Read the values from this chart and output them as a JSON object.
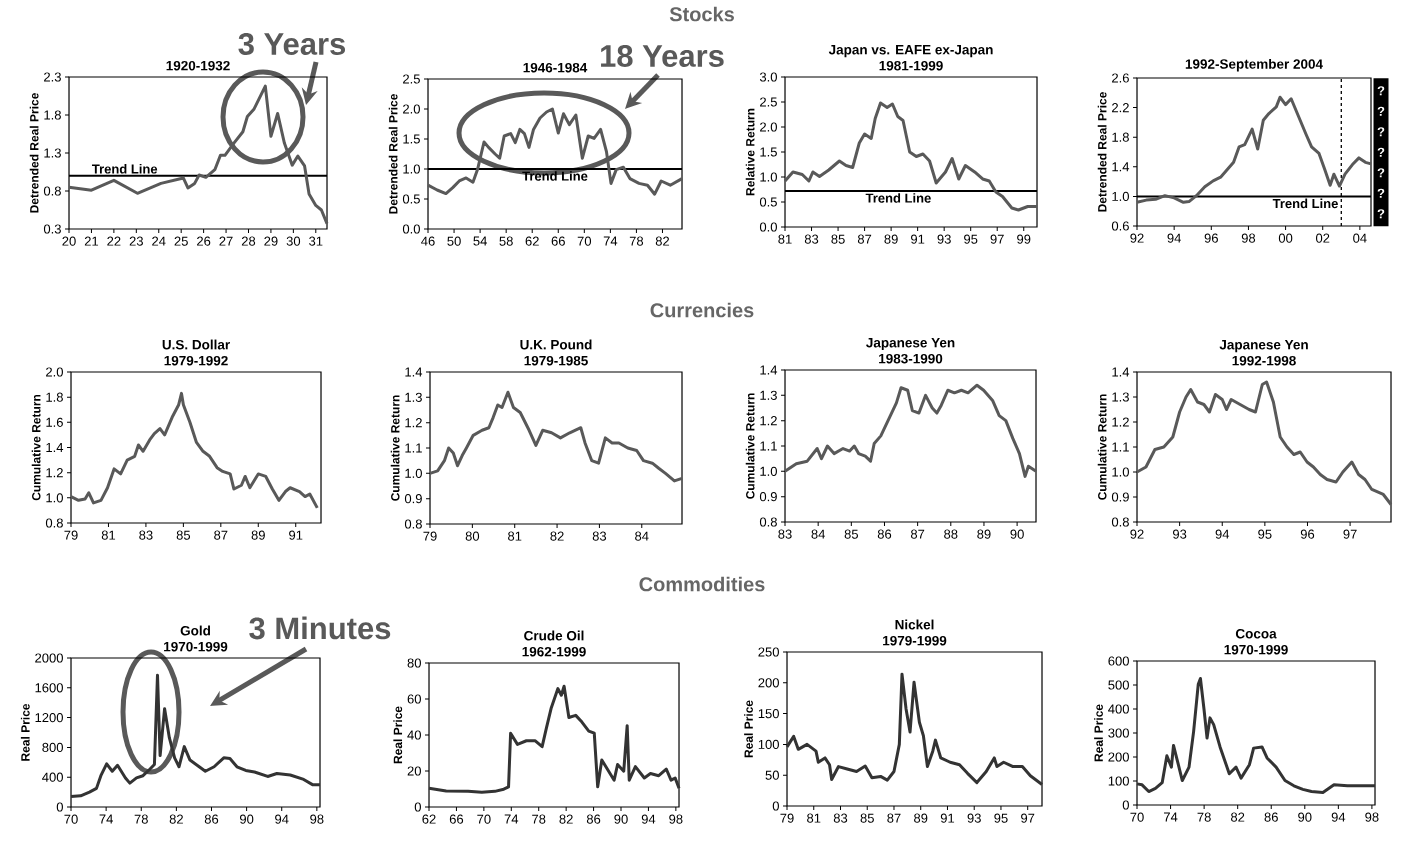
{
  "chart_data": [
    {
      "type": "line",
      "subtitle": "1920-1932",
      "ylabel": "Detrended Real Price",
      "color": "#595959",
      "x": [
        1920,
        1921,
        1922,
        1923.05,
        1924.1,
        1925.1,
        1925.3,
        1925.6,
        1925.8,
        1926.1,
        1926.5,
        1926.75,
        1926.95,
        1927.35,
        1927.75,
        1927.95,
        1928.25,
        1928.75,
        1929.0,
        1929.3,
        1929.6,
        1929.95,
        1930.2,
        1930.5,
        1930.7,
        1931.0,
        1931.25,
        1931.5
      ],
      "values": [
        0.85,
        0.81,
        0.94,
        0.77,
        0.9,
        0.97,
        0.84,
        0.9,
        1.01,
        0.98,
        1.08,
        1.27,
        1.27,
        1.43,
        1.58,
        1.78,
        1.88,
        2.18,
        1.52,
        1.82,
        1.43,
        1.14,
        1.26,
        1.13,
        0.76,
        0.61,
        0.55,
        0.37
      ],
      "xlim": [
        1920,
        1931.5
      ],
      "ylim": [
        0.3,
        2.3
      ],
      "xticks": [
        {
          "value": 1920,
          "label": "20"
        },
        {
          "value": 1921,
          "label": "21"
        },
        {
          "value": 1922,
          "label": "22"
        },
        {
          "value": 1923,
          "label": "23"
        },
        {
          "value": 1924,
          "label": "24"
        },
        {
          "value": 1925,
          "label": "25"
        },
        {
          "value": 1926,
          "label": "26"
        },
        {
          "value": 1927,
          "label": "27"
        },
        {
          "value": 1928,
          "label": "28"
        },
        {
          "value": 1929,
          "label": "29"
        },
        {
          "value": 1930,
          "label": "30"
        },
        {
          "value": 1931,
          "label": "31"
        }
      ],
      "yticks": [
        0.3,
        0.8,
        1.3,
        1.8,
        2.3
      ],
      "ref_lines": [
        {
          "axis": "y",
          "value": 1.0,
          "label": "Trend Line",
          "color": "#000000"
        }
      ],
      "annotations": [
        "Stocks",
        "3 Years"
      ]
    },
    {
      "type": "line",
      "subtitle": "1946-1984",
      "ylabel": "Detrended Real Price",
      "color": "#595959",
      "x": [
        1946,
        1947.4,
        1948.75,
        1949.8,
        1950.8,
        1951.85,
        1952.9,
        1953.6,
        1954.6,
        1955.3,
        1956.3,
        1957.0,
        1957.7,
        1958.7,
        1959.4,
        1960.1,
        1960.8,
        1961.5,
        1962.2,
        1963.2,
        1964.2,
        1965.1,
        1966.0,
        1966.8,
        1967.7,
        1968.7,
        1969.7,
        1970.6,
        1971.5,
        1972.5,
        1973.4,
        1974.1,
        1974.9,
        1976.0,
        1977.0,
        1978.4,
        1979.7,
        1980.8,
        1981.8,
        1983.2,
        1985.0
      ],
      "values": [
        0.73,
        0.65,
        0.59,
        0.69,
        0.8,
        0.85,
        0.78,
        0.99,
        1.45,
        1.36,
        1.25,
        1.18,
        1.55,
        1.59,
        1.44,
        1.66,
        1.59,
        1.36,
        1.66,
        1.85,
        1.95,
        2.0,
        1.6,
        1.92,
        1.74,
        1.9,
        1.18,
        1.55,
        1.51,
        1.66,
        1.29,
        0.76,
        0.99,
        1.03,
        0.84,
        0.76,
        0.73,
        0.58,
        0.8,
        0.73,
        0.84
      ],
      "xlim": [
        1946,
        1985
      ],
      "ylim": [
        0,
        2.5
      ],
      "xticks": [
        {
          "value": 1946,
          "label": "46"
        },
        {
          "value": 1950,
          "label": "50"
        },
        {
          "value": 1954,
          "label": "54"
        },
        {
          "value": 1958,
          "label": "58"
        },
        {
          "value": 1962,
          "label": "62"
        },
        {
          "value": 1966,
          "label": "66"
        },
        {
          "value": 1970,
          "label": "70"
        },
        {
          "value": 1974,
          "label": "74"
        },
        {
          "value": 1978,
          "label": "78"
        },
        {
          "value": 1982,
          "label": "82"
        }
      ],
      "yticks": [
        {
          "value": 0,
          "label": "0.0"
        },
        0.5,
        {
          "value": 1,
          "label": "1.0"
        },
        1.5,
        {
          "value": 2,
          "label": "2.0"
        },
        2.5
      ],
      "ref_lines": [
        {
          "axis": "y",
          "value": 1.0,
          "label": "Trend Line",
          "color": "#000000"
        }
      ],
      "annotations": [
        "18 Years"
      ]
    },
    {
      "type": "line",
      "title": "Japan vs. EAFE ex-Japan",
      "subtitle": "1981-1999",
      "ylabel": "Relative Return",
      "color": "#595959",
      "x": [
        1981,
        1981.6,
        1982.3,
        1982.8,
        1983.1,
        1983.6,
        1984.3,
        1985.1,
        1985.6,
        1986.1,
        1986.6,
        1987.0,
        1987.5,
        1987.8,
        1988.2,
        1988.7,
        1989.1,
        1989.5,
        1989.9,
        1990.4,
        1990.9,
        1991.4,
        1991.9,
        1992.4,
        1993.1,
        1993.6,
        1994.1,
        1994.6,
        1995.3,
        1995.9,
        1996.4,
        1996.9,
        1997.4,
        1998.1,
        1998.6,
        1999.3,
        2000
      ],
      "values": [
        0.92,
        1.1,
        1.05,
        0.92,
        1.1,
        1.01,
        1.14,
        1.32,
        1.23,
        1.19,
        1.68,
        1.86,
        1.77,
        2.17,
        2.48,
        2.39,
        2.46,
        2.21,
        2.13,
        1.5,
        1.41,
        1.46,
        1.32,
        0.88,
        1.1,
        1.37,
        0.96,
        1.23,
        1.1,
        0.96,
        0.92,
        0.7,
        0.61,
        0.38,
        0.34,
        0.41,
        0.41
      ],
      "xlim": [
        1981,
        2000
      ],
      "ylim": [
        0,
        3
      ],
      "xticks": [
        {
          "value": 1981,
          "label": "81"
        },
        {
          "value": 1983,
          "label": "83"
        },
        {
          "value": 1985,
          "label": "85"
        },
        {
          "value": 1987,
          "label": "87"
        },
        {
          "value": 1989,
          "label": "89"
        },
        {
          "value": 1991,
          "label": "91"
        },
        {
          "value": 1993,
          "label": "93"
        },
        {
          "value": 1995,
          "label": "95"
        },
        {
          "value": 1997,
          "label": "97"
        },
        {
          "value": 1999,
          "label": "99"
        }
      ],
      "yticks": [
        {
          "value": 0,
          "label": "0.0"
        },
        0.5,
        {
          "value": 1,
          "label": "1.0"
        },
        1.5,
        {
          "value": 2,
          "label": "2.0"
        },
        2.5,
        {
          "value": 3,
          "label": "3.0"
        }
      ],
      "ref_lines": [
        {
          "axis": "y",
          "value": 0.72,
          "label": "Trend Line",
          "color": "#000000"
        }
      ]
    },
    {
      "type": "line",
      "subtitle": "1992-September 2004",
      "ylabel": "Detrended Real Price",
      "color": "#595959",
      "x": [
        1992,
        1992.5,
        1993,
        1993.5,
        1994,
        1994.5,
        1994.8,
        1995.2,
        1995.65,
        1996.1,
        1996.5,
        1996.85,
        1997.2,
        1997.5,
        1997.8,
        1998.2,
        1998.5,
        1998.8,
        1999.1,
        1999.5,
        1999.7,
        2000,
        2000.3,
        2000.7,
        2001.1,
        2001.4,
        2001.8,
        2002.1,
        2002.4,
        2002.6,
        2002.9,
        2003.2,
        2003.6,
        2003.95,
        2004.3,
        2004.6
      ],
      "values": [
        0.92,
        0.95,
        0.96,
        1.01,
        0.98,
        0.92,
        0.93,
        1.01,
        1.13,
        1.21,
        1.26,
        1.36,
        1.46,
        1.67,
        1.7,
        1.91,
        1.64,
        2.03,
        2.12,
        2.21,
        2.34,
        2.24,
        2.32,
        2.08,
        1.84,
        1.67,
        1.58,
        1.37,
        1.15,
        1.3,
        1.14,
        1.3,
        1.43,
        1.52,
        1.46,
        1.44
      ],
      "xlim": [
        1992,
        2004.6
      ],
      "ylim": [
        0.6,
        2.6
      ],
      "xticks": [
        {
          "value": 1992,
          "label": "92"
        },
        {
          "value": 1994,
          "label": "94"
        },
        {
          "value": 1996,
          "label": "96"
        },
        {
          "value": 1998,
          "label": "98"
        },
        {
          "value": 2000,
          "label": "00"
        },
        {
          "value": 2002,
          "label": "02"
        },
        {
          "value": 2004,
          "label": "04"
        }
      ],
      "yticks": [
        0.6,
        {
          "value": 1,
          "label": "1.0"
        },
        1.4,
        1.8,
        2.2,
        2.6
      ],
      "ref_lines": [
        {
          "axis": "y",
          "value": 1.0,
          "label": "Trend Line",
          "color": "#000000"
        },
        {
          "axis": "x",
          "value": 2003,
          "color": "#000000",
          "line_style": "dashed"
        }
      ],
      "annotations": [
        "? ? ? ? ? ? ?"
      ]
    },
    {
      "type": "line",
      "title": "U.S. Dollar",
      "subtitle": "1979-1992",
      "ylabel": "Cumulative Return",
      "color": "#595959",
      "x": [
        1979,
        1979.4,
        1979.75,
        1979.95,
        1980.2,
        1980.6,
        1980.95,
        1981.3,
        1981.65,
        1982.0,
        1982.4,
        1982.6,
        1982.85,
        1983.2,
        1983.45,
        1983.75,
        1984.0,
        1984.4,
        1984.75,
        1984.9,
        1985.0,
        1985.35,
        1985.7,
        1986.05,
        1986.4,
        1986.8,
        1987.1,
        1987.5,
        1987.7,
        1988.1,
        1988.3,
        1988.55,
        1989.0,
        1989.4,
        1989.75,
        1990.1,
        1990.45,
        1990.7,
        1991.2,
        1991.5,
        1991.75,
        1992.15
      ],
      "values": [
        1.01,
        0.98,
        0.99,
        1.04,
        0.96,
        0.98,
        1.08,
        1.23,
        1.19,
        1.3,
        1.33,
        1.42,
        1.37,
        1.46,
        1.51,
        1.55,
        1.5,
        1.64,
        1.74,
        1.83,
        1.74,
        1.6,
        1.44,
        1.37,
        1.33,
        1.24,
        1.21,
        1.19,
        1.07,
        1.1,
        1.17,
        1.08,
        1.19,
        1.17,
        1.07,
        0.98,
        1.05,
        1.08,
        1.05,
        1.01,
        1.03,
        0.92
      ],
      "xlim": [
        1979,
        1992.35
      ],
      "ylim": [
        0.8,
        2.0
      ],
      "xticks": [
        {
          "value": 1979,
          "label": "79"
        },
        {
          "value": 1981,
          "label": "81"
        },
        {
          "value": 1983,
          "label": "83"
        },
        {
          "value": 1985,
          "label": "85"
        },
        {
          "value": 1987,
          "label": "87"
        },
        {
          "value": 1989,
          "label": "89"
        },
        {
          "value": 1991,
          "label": "91"
        }
      ],
      "yticks": [
        0.8,
        {
          "value": 1,
          "label": "1.0"
        },
        1.2,
        1.4,
        1.6,
        1.8,
        {
          "value": 2,
          "label": "2.0"
        }
      ],
      "annotations": [
        "Currencies"
      ]
    },
    {
      "type": "line",
      "title": "U.K. Pound",
      "subtitle": "1979-1985",
      "ylabel": "Cumulative Return",
      "color": "#595959",
      "x": [
        1979,
        1979.18,
        1979.34,
        1979.44,
        1979.55,
        1979.65,
        1979.76,
        1979.86,
        1980.02,
        1980.23,
        1980.39,
        1980.49,
        1980.6,
        1980.7,
        1980.84,
        1980.97,
        1981.13,
        1981.34,
        1981.5,
        1981.66,
        1981.87,
        1982.08,
        1982.3,
        1982.56,
        1982.66,
        1982.82,
        1982.98,
        1983.14,
        1983.3,
        1983.46,
        1983.67,
        1983.88,
        1984.04,
        1984.25,
        1984.4,
        1984.56,
        1984.77,
        1984.95
      ],
      "values": [
        1.0,
        1.01,
        1.05,
        1.1,
        1.08,
        1.03,
        1.07,
        1.1,
        1.15,
        1.17,
        1.18,
        1.22,
        1.27,
        1.26,
        1.32,
        1.26,
        1.24,
        1.17,
        1.11,
        1.17,
        1.16,
        1.14,
        1.16,
        1.18,
        1.12,
        1.05,
        1.04,
        1.14,
        1.12,
        1.12,
        1.1,
        1.09,
        1.05,
        1.04,
        1.02,
        1.0,
        0.97,
        0.98
      ],
      "xlim": [
        1979,
        1984.95
      ],
      "ylim": [
        0.8,
        1.4
      ],
      "xticks": [
        {
          "value": 1979,
          "label": "79"
        },
        {
          "value": 1980,
          "label": "80"
        },
        {
          "value": 1981,
          "label": "81"
        },
        {
          "value": 1982,
          "label": "82"
        },
        {
          "value": 1983,
          "label": "83"
        },
        {
          "value": 1984,
          "label": "84"
        }
      ],
      "yticks": [
        0.8,
        0.9,
        {
          "value": 1,
          "label": "1.0"
        },
        1.1,
        1.2,
        1.3,
        1.4
      ]
    },
    {
      "type": "line",
      "title": "Japanese Yen",
      "subtitle": "1983-1990",
      "ylabel": "Cumulative Return",
      "color": "#595959",
      "x": [
        1983,
        1983.34,
        1983.67,
        1983.97,
        1984.1,
        1984.28,
        1984.48,
        1984.75,
        1984.95,
        1985.09,
        1985.22,
        1985.42,
        1985.58,
        1985.69,
        1985.89,
        1986.36,
        1986.5,
        1986.7,
        1986.84,
        1987.04,
        1987.24,
        1987.44,
        1987.58,
        1987.71,
        1987.91,
        1988.11,
        1988.32,
        1988.52,
        1988.79,
        1988.99,
        1989.26,
        1989.46,
        1989.66,
        1989.87,
        1990.07,
        1990.24,
        1990.34,
        1990.57
      ],
      "values": [
        1.0,
        1.03,
        1.04,
        1.09,
        1.05,
        1.1,
        1.07,
        1.09,
        1.08,
        1.1,
        1.07,
        1.06,
        1.04,
        1.11,
        1.14,
        1.27,
        1.33,
        1.32,
        1.24,
        1.23,
        1.3,
        1.25,
        1.23,
        1.26,
        1.32,
        1.31,
        1.32,
        1.31,
        1.34,
        1.32,
        1.28,
        1.22,
        1.2,
        1.13,
        1.07,
        0.98,
        1.02,
        1.0
      ],
      "xlim": [
        1983,
        1990.57
      ],
      "ylim": [
        0.8,
        1.4
      ],
      "xticks": [
        {
          "value": 1983,
          "label": "83"
        },
        {
          "value": 1984,
          "label": "84"
        },
        {
          "value": 1985,
          "label": "85"
        },
        {
          "value": 1986,
          "label": "86"
        },
        {
          "value": 1987,
          "label": "87"
        },
        {
          "value": 1988,
          "label": "88"
        },
        {
          "value": 1989,
          "label": "89"
        },
        {
          "value": 1990,
          "label": "90"
        }
      ],
      "yticks": [
        0.8,
        0.9,
        {
          "value": 1,
          "label": "1.0"
        },
        1.1,
        1.2,
        1.3,
        1.4
      ]
    },
    {
      "type": "line",
      "title": "Japanese Yen",
      "subtitle": "1992-1998",
      "ylabel": "Cumulative Return",
      "color": "#595959",
      "x": [
        1992,
        1992.21,
        1992.42,
        1992.63,
        1992.84,
        1993,
        1993.15,
        1993.26,
        1993.42,
        1993.57,
        1993.7,
        1993.84,
        1994,
        1994.1,
        1994.21,
        1994.42,
        1994.63,
        1994.78,
        1994.94,
        1995.04,
        1995.2,
        1995.36,
        1995.52,
        1995.68,
        1995.83,
        1995.99,
        1996.14,
        1996.3,
        1996.46,
        1996.67,
        1996.83,
        1997.04,
        1997.2,
        1997.35,
        1997.51,
        1997.78,
        1997.96
      ],
      "values": [
        1.0,
        1.02,
        1.09,
        1.1,
        1.14,
        1.24,
        1.3,
        1.33,
        1.28,
        1.27,
        1.24,
        1.31,
        1.29,
        1.25,
        1.29,
        1.27,
        1.25,
        1.24,
        1.35,
        1.36,
        1.28,
        1.14,
        1.1,
        1.07,
        1.08,
        1.04,
        1.02,
        0.99,
        0.97,
        0.96,
        1.0,
        1.04,
        0.99,
        0.97,
        0.93,
        0.91,
        0.87
      ],
      "xlim": [
        1992,
        1997.96
      ],
      "ylim": [
        0.8,
        1.4
      ],
      "xticks": [
        {
          "value": 1992,
          "label": "92"
        },
        {
          "value": 1993,
          "label": "93"
        },
        {
          "value": 1994,
          "label": "94"
        },
        {
          "value": 1995,
          "label": "95"
        },
        {
          "value": 1996,
          "label": "96"
        },
        {
          "value": 1997,
          "label": "97"
        }
      ],
      "yticks": [
        0.8,
        0.9,
        {
          "value": 1,
          "label": "1.0"
        },
        1.1,
        1.2,
        1.3,
        1.4
      ]
    },
    {
      "type": "line",
      "title": "Gold",
      "subtitle": "1970-1999",
      "ylabel": "Real Price",
      "color": "#333333",
      "x": [
        1970,
        1971.1,
        1972.1,
        1972.9,
        1973.4,
        1974.06,
        1974.7,
        1975.3,
        1976.2,
        1976.7,
        1977.46,
        1978.2,
        1979,
        1979.5,
        1979.85,
        1980.15,
        1980.66,
        1981.2,
        1981.8,
        1982.3,
        1982.9,
        1983.55,
        1984.6,
        1985.3,
        1986.3,
        1987.4,
        1988.1,
        1988.9,
        1989.9,
        1990.9,
        1992.4,
        1993.45,
        1994.97,
        1996.5,
        1997.5,
        1998.36
      ],
      "values": [
        140,
        150,
        200,
        250,
        420,
        580,
        480,
        560,
        390,
        320,
        390,
        420,
        510,
        570,
        1770,
        690,
        1320,
        930,
        660,
        540,
        810,
        630,
        540,
        480,
        540,
        660,
        650,
        540,
        490,
        470,
        410,
        450,
        430,
        370,
        300,
        300
      ],
      "xlim": [
        1970,
        1998.36
      ],
      "ylim": [
        0,
        2000
      ],
      "xticks": [
        {
          "value": 1970,
          "label": "70"
        },
        {
          "value": 1974,
          "label": "74"
        },
        {
          "value": 1978,
          "label": "78"
        },
        {
          "value": 1982,
          "label": "82"
        },
        {
          "value": 1986,
          "label": "86"
        },
        {
          "value": 1990,
          "label": "90"
        },
        {
          "value": 1994,
          "label": "94"
        },
        {
          "value": 1998,
          "label": "98"
        }
      ],
      "yticks": [
        0,
        400,
        800,
        1200,
        1600,
        2000
      ],
      "annotations": [
        "Commodities",
        "3 Minutes"
      ]
    },
    {
      "type": "line",
      "title": "Crude Oil",
      "subtitle": "1962-1999",
      "ylabel": "Real Price",
      "color": "#333333",
      "x": [
        1962,
        1964.5,
        1967.7,
        1969.7,
        1971.6,
        1972.9,
        1973.6,
        1973.9,
        1974.9,
        1976.2,
        1977.5,
        1978.5,
        1979.1,
        1979.8,
        1980.8,
        1981.3,
        1981.7,
        1982.4,
        1983.4,
        1984.3,
        1985.3,
        1986.1,
        1986.6,
        1987.2,
        1988.2,
        1989.0,
        1989.5,
        1990.4,
        1990.9,
        1991.2,
        1992.1,
        1993.4,
        1994.3,
        1995.5,
        1996.6,
        1997.3,
        1997.9,
        1998.46
      ],
      "values": [
        10.4,
        8.9,
        8.7,
        8.2,
        8.7,
        9.9,
        11.2,
        41,
        34.8,
        36.8,
        36.8,
        33.5,
        43.5,
        54.7,
        65.8,
        62.1,
        67.1,
        49.7,
        50.9,
        47.2,
        42.2,
        41,
        11.2,
        26.1,
        19.9,
        14.9,
        23.6,
        19.9,
        45.2,
        14.9,
        22.4,
        16.1,
        18.6,
        17.4,
        21.1,
        14.9,
        16.1,
        10.4
      ],
      "xlim": [
        1962,
        1998.46
      ],
      "ylim": [
        0,
        80
      ],
      "xticks": [
        {
          "value": 1962,
          "label": "62"
        },
        {
          "value": 1966,
          "label": "66"
        },
        {
          "value": 1970,
          "label": "70"
        },
        {
          "value": 1974,
          "label": "74"
        },
        {
          "value": 1978,
          "label": "78"
        },
        {
          "value": 1982,
          "label": "82"
        },
        {
          "value": 1986,
          "label": "86"
        },
        {
          "value": 1990,
          "label": "90"
        },
        {
          "value": 1994,
          "label": "94"
        },
        {
          "value": 1998,
          "label": "98"
        }
      ],
      "yticks": [
        0,
        20,
        40,
        60,
        80
      ]
    },
    {
      "type": "line",
      "title": "Nickel",
      "subtitle": "1979-1999",
      "ylabel": "Real Price",
      "color": "#333333",
      "x": [
        1979,
        1979.5,
        1979.84,
        1980.5,
        1981.17,
        1981.34,
        1981.84,
        1982.18,
        1982.34,
        1982.85,
        1983.5,
        1984.2,
        1984.85,
        1985.35,
        1986,
        1986.5,
        1987,
        1987.4,
        1987.6,
        1987.9,
        1988.2,
        1988.5,
        1988.9,
        1989.2,
        1989.5,
        1989.9,
        1990.1,
        1990.5,
        1991.2,
        1991.9,
        1992.5,
        1993.2,
        1993.9,
        1994.5,
        1994.7,
        1995.2,
        1995.9,
        1996.6,
        1997.2,
        1998.07
      ],
      "values": [
        96,
        113,
        92,
        100,
        89,
        71,
        78,
        67,
        43,
        64,
        60,
        56,
        65,
        46,
        48,
        42,
        56,
        100,
        214,
        158,
        120,
        201,
        136,
        114,
        64,
        89,
        107,
        78,
        71,
        67,
        53,
        38,
        56,
        78,
        64,
        71,
        64,
        64,
        49,
        35
      ],
      "xlim": [
        1979,
        1998.07
      ],
      "ylim": [
        0,
        250
      ],
      "xticks": [
        {
          "value": 1979,
          "label": "79"
        },
        {
          "value": 1981,
          "label": "81"
        },
        {
          "value": 1983,
          "label": "83"
        },
        {
          "value": 1985,
          "label": "85"
        },
        {
          "value": 1987,
          "label": "87"
        },
        {
          "value": 1989,
          "label": "89"
        },
        {
          "value": 1991,
          "label": "91"
        },
        {
          "value": 1993,
          "label": "93"
        },
        {
          "value": 1995,
          "label": "95"
        },
        {
          "value": 1997,
          "label": "97"
        }
      ],
      "yticks": [
        0,
        50,
        100,
        150,
        200,
        250
      ]
    },
    {
      "type": "line",
      "title": "Cocoa",
      "subtitle": "1970-1999",
      "ylabel": "Real Price",
      "color": "#333333",
      "x": [
        1970,
        1970.6,
        1971.4,
        1972.2,
        1973,
        1973.56,
        1974.1,
        1974.35,
        1974.8,
        1975.4,
        1976.2,
        1976.75,
        1977.3,
        1977.56,
        1977.98,
        1978.35,
        1978.7,
        1979.14,
        1979.9,
        1981,
        1981.8,
        1982.4,
        1983.4,
        1983.9,
        1984.9,
        1985.5,
        1986.58,
        1987.64,
        1988.7,
        1989.77,
        1990.8,
        1992.16,
        1993.48,
        1995.08,
        1996.4,
        1998.37
      ],
      "values": [
        88,
        84,
        56,
        69,
        93,
        205,
        158,
        248,
        186,
        102,
        158,
        307,
        503,
        527,
        401,
        279,
        363,
        335,
        242,
        130,
        158,
        112,
        168,
        237,
        242,
        196,
        158,
        102,
        80,
        65,
        56,
        52,
        84,
        80,
        80,
        80
      ],
      "xlim": [
        1970,
        1998.37
      ],
      "ylim": [
        0,
        600
      ],
      "xticks": [
        {
          "value": 1970,
          "label": "70"
        },
        {
          "value": 1974,
          "label": "74"
        },
        {
          "value": 1978,
          "label": "78"
        },
        {
          "value": 1982,
          "label": "82"
        },
        {
          "value": 1986,
          "label": "86"
        },
        {
          "value": 1990,
          "label": "90"
        },
        {
          "value": 1994,
          "label": "94"
        },
        {
          "value": 1998,
          "label": "98"
        }
      ],
      "yticks": [
        0,
        100,
        200,
        300,
        400,
        500,
        600
      ]
    }
  ]
}
